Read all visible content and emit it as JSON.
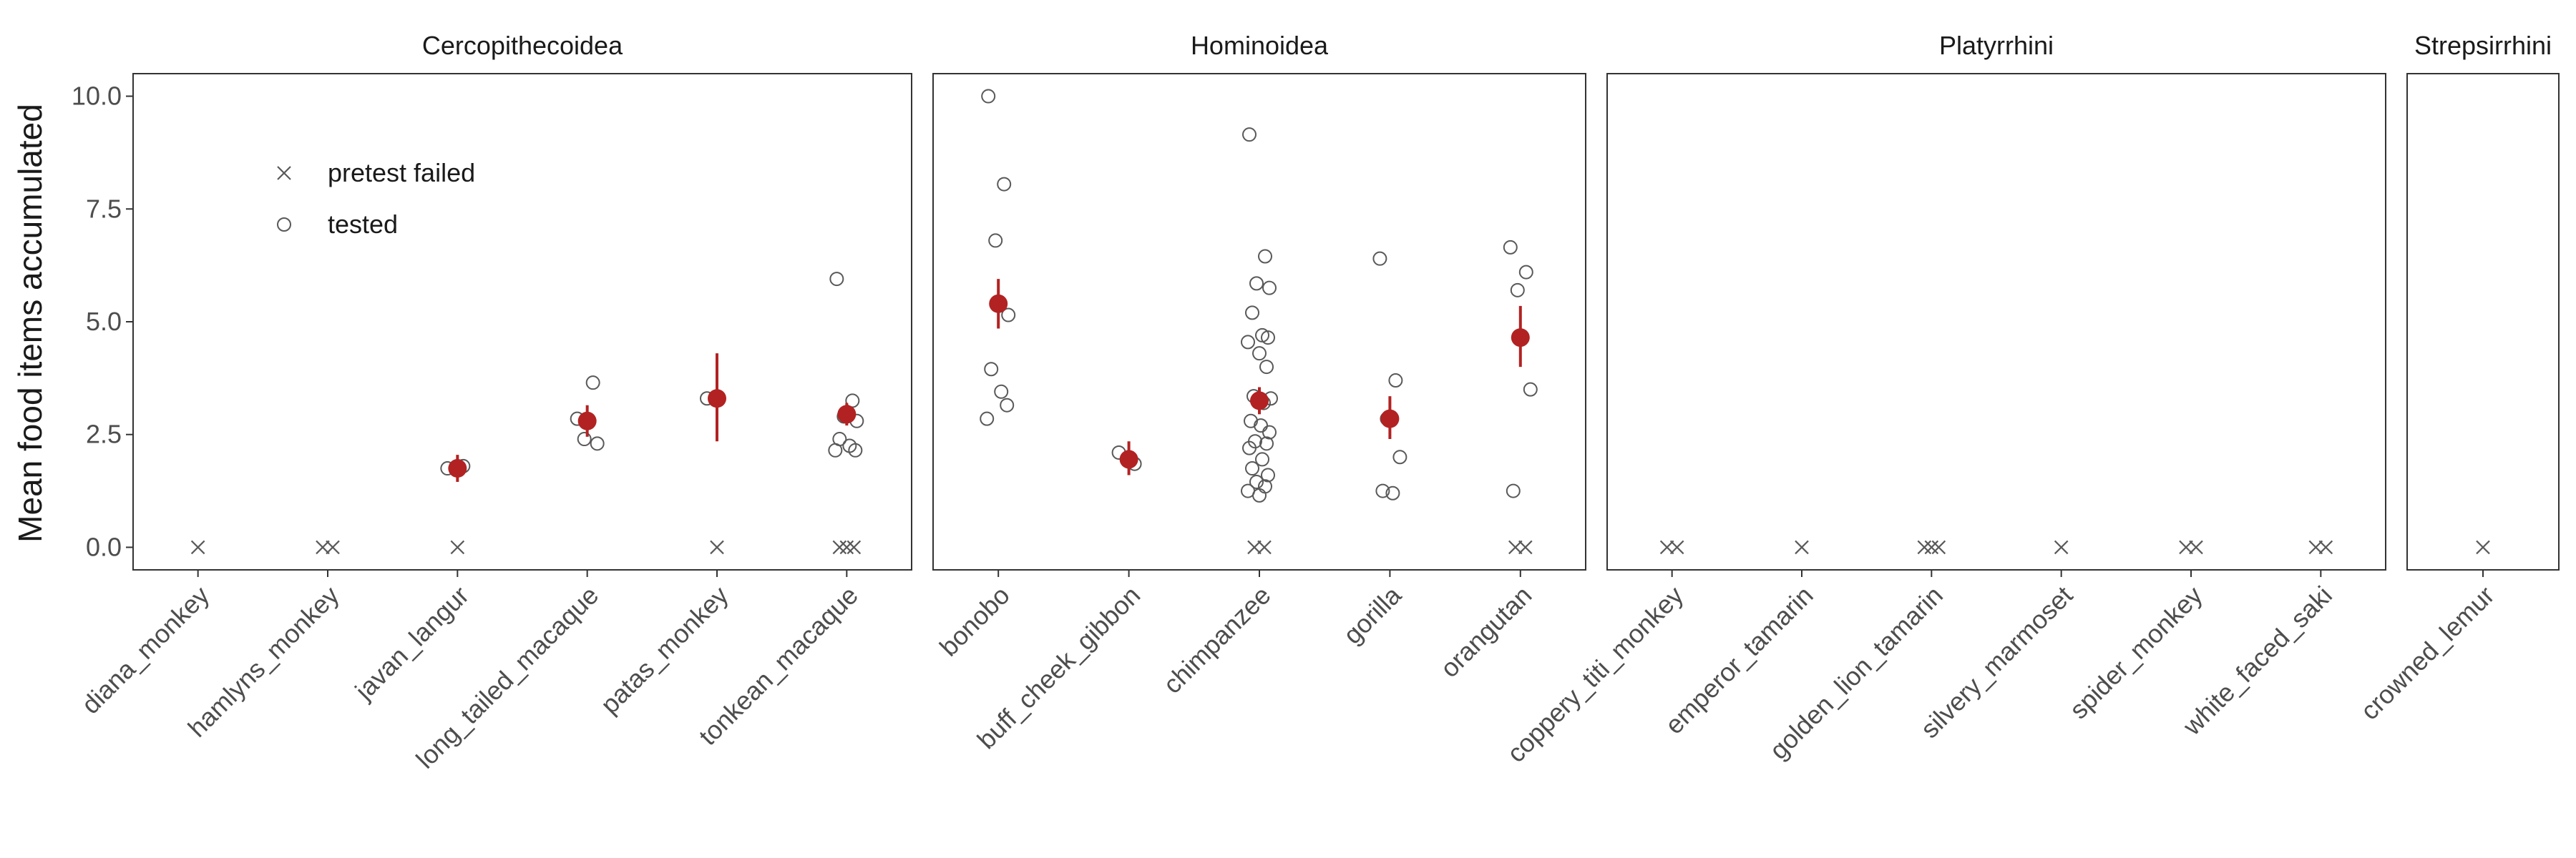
{
  "chart_data": {
    "type": "scatter",
    "ylabel": "Mean food items accumulated",
    "ylim": [
      -0.5,
      10.5
    ],
    "yticks": [
      0,
      2.5,
      5,
      7.5,
      10
    ],
    "ytick_labels": [
      "0.0",
      "2.5",
      "5.0",
      "7.5",
      "10.0"
    ],
    "grid": false,
    "legend": {
      "placement": "inside top-left",
      "entries": [
        {
          "label": "pretest failed",
          "shape": "x"
        },
        {
          "label": "tested",
          "shape": "open-circle"
        }
      ]
    },
    "colors": {
      "points": "#595959",
      "mean": "#b22222",
      "panel_border": "#333333"
    },
    "panels": [
      {
        "title": "Cercopithecoidea",
        "species": [
          {
            "name": "diana_monkey",
            "failed": 1,
            "tested": [],
            "mean": null
          },
          {
            "name": "hamlyns_monkey",
            "failed": 2,
            "tested": [],
            "mean": null
          },
          {
            "name": "javan_langur",
            "failed": 1,
            "tested": [
              1.75,
              1.8
            ],
            "mean": {
              "value": 1.75,
              "low": 1.45,
              "high": 2.05
            }
          },
          {
            "name": "long_tailed_macaque",
            "failed": 0,
            "tested": [
              2.85,
              3.65,
              2.4,
              2.3
            ],
            "mean": {
              "value": 2.8,
              "low": 2.45,
              "high": 3.15
            }
          },
          {
            "name": "patas_monkey",
            "failed": 1,
            "tested": [
              3.3
            ],
            "mean": {
              "value": 3.3,
              "low": 2.35,
              "high": 4.3
            }
          },
          {
            "name": "tonkean_macaque",
            "failed": 3,
            "tested": [
              5.95,
              3.25,
              2.9,
              2.8,
              2.4,
              2.25,
              2.15,
              2.15
            ],
            "mean": {
              "value": 2.95,
              "low": 2.7,
              "high": 3.2
            }
          }
        ]
      },
      {
        "title": "Hominoidea",
        "species": [
          {
            "name": "bonobo",
            "failed": 0,
            "tested": [
              10.0,
              8.05,
              6.8,
              5.15,
              3.95,
              3.45,
              3.15,
              2.85
            ],
            "mean": {
              "value": 5.4,
              "low": 4.85,
              "high": 5.95
            }
          },
          {
            "name": "buff_cheek_gibbon",
            "failed": 0,
            "tested": [
              2.1,
              1.85
            ],
            "mean": {
              "value": 1.95,
              "low": 1.6,
              "high": 2.35
            }
          },
          {
            "name": "chimpanzee",
            "failed": 2,
            "tested": [
              9.15,
              6.45,
              5.85,
              5.75,
              5.2,
              4.7,
              4.65,
              4.55,
              4.3,
              4.0,
              3.35,
              3.3,
              3.25,
              3.2,
              2.8,
              2.7,
              2.55,
              2.35,
              2.3,
              2.2,
              1.95,
              1.75,
              1.6,
              1.45,
              1.35,
              1.25,
              1.15
            ],
            "mean": {
              "value": 3.25,
              "low": 2.95,
              "high": 3.55
            }
          },
          {
            "name": "gorilla",
            "failed": 0,
            "tested": [
              6.4,
              3.7,
              2.85,
              2.0,
              1.25,
              1.2
            ],
            "mean": {
              "value": 2.85,
              "low": 2.4,
              "high": 3.35
            }
          },
          {
            "name": "orangutan",
            "failed": 2,
            "tested": [
              6.65,
              6.1,
              5.7,
              3.5,
              1.25
            ],
            "mean": {
              "value": 4.65,
              "low": 4.0,
              "high": 5.35
            }
          }
        ]
      },
      {
        "title": "Platyrrhini",
        "species": [
          {
            "name": "coppery_titi_monkey",
            "failed": 2,
            "tested": [],
            "mean": null
          },
          {
            "name": "emperor_tamarin",
            "failed": 1,
            "tested": [],
            "mean": null
          },
          {
            "name": "golden_lion_tamarin",
            "failed": 3,
            "tested": [],
            "mean": null
          },
          {
            "name": "silvery_marmoset",
            "failed": 1,
            "tested": [],
            "mean": null
          },
          {
            "name": "spider_monkey",
            "failed": 2,
            "tested": [],
            "mean": null
          },
          {
            "name": "white_faced_saki",
            "failed": 2,
            "tested": [],
            "mean": null
          }
        ]
      },
      {
        "title": "Strepsirrhini",
        "species": [
          {
            "name": "crowned_lemur",
            "failed": 1,
            "tested": [],
            "mean": null
          }
        ]
      }
    ]
  }
}
